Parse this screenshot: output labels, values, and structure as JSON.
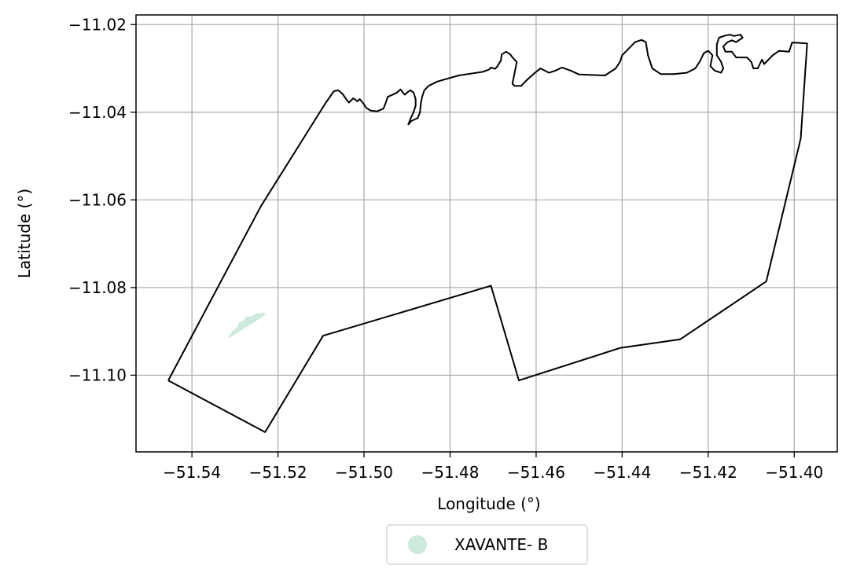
{
  "chart_data": {
    "type": "map",
    "xlabel": "Longitude (°)",
    "ylabel": "Latitude (°)",
    "xlim": [
      -51.553,
      -51.39
    ],
    "ylim": [
      -11.1175,
      -11.0178
    ],
    "xticks": [
      -51.54,
      -51.52,
      -51.5,
      -51.48,
      -51.46,
      -51.44,
      -51.42,
      -51.4
    ],
    "yticks": [
      -11.1,
      -11.08,
      -11.06,
      -11.04,
      -11.02
    ],
    "xtick_labels": [
      "−51.54",
      "−51.52",
      "−51.50",
      "−51.48",
      "−51.46",
      "−51.44",
      "−51.42",
      "−51.40"
    ],
    "ytick_labels": [
      "−11.10",
      "−11.08",
      "−11.06",
      "−11.04",
      "−11.02"
    ],
    "grid": true,
    "legend_position": "bottom-center",
    "boundary": {
      "color": "#000000",
      "coords": [
        [
          -51.5455,
          -11.1012
        ],
        [
          -51.523,
          -11.113
        ],
        [
          -51.5095,
          -11.091
        ],
        [
          -51.4705,
          -11.0796
        ],
        [
          -51.464,
          -11.1012
        ],
        [
          -51.4405,
          -11.0938
        ],
        [
          -51.4265,
          -11.0918
        ],
        [
          -51.4065,
          -11.0786
        ],
        [
          -51.3985,
          -11.046
        ],
        [
          -51.397,
          -11.0243
        ],
        [
          -51.4005,
          -11.0241
        ],
        [
          -51.4012,
          -11.0262
        ],
        [
          -51.4035,
          -11.026
        ],
        [
          -51.405,
          -11.027
        ],
        [
          -51.407,
          -11.029
        ],
        [
          -51.4075,
          -11.028
        ],
        [
          -51.4085,
          -11.03
        ],
        [
          -51.4095,
          -11.03
        ],
        [
          -51.41,
          -11.0285
        ],
        [
          -51.411,
          -11.0275
        ],
        [
          -51.4135,
          -11.0275
        ],
        [
          -51.4145,
          -11.0262
        ],
        [
          -51.416,
          -11.0262
        ],
        [
          -51.4165,
          -11.025
        ],
        [
          -51.4155,
          -11.024
        ],
        [
          -51.4145,
          -11.0236
        ],
        [
          -51.4135,
          -11.024
        ],
        [
          -51.412,
          -11.023
        ],
        [
          -51.4125,
          -11.0223
        ],
        [
          -51.414,
          -11.0226
        ],
        [
          -51.415,
          -11.0223
        ],
        [
          -51.416,
          -11.0225
        ],
        [
          -51.4175,
          -11.023
        ],
        [
          -51.418,
          -11.0245
        ],
        [
          -51.418,
          -11.027
        ],
        [
          -51.417,
          -11.0285
        ],
        [
          -51.4165,
          -11.03
        ],
        [
          -51.417,
          -11.031
        ],
        [
          -51.4185,
          -11.0305
        ],
        [
          -51.4195,
          -11.0295
        ],
        [
          -51.419,
          -11.027
        ],
        [
          -51.42,
          -11.026
        ],
        [
          -51.421,
          -11.0265
        ],
        [
          -51.422,
          -11.0285
        ],
        [
          -51.423,
          -11.03
        ],
        [
          -51.425,
          -11.031
        ],
        [
          -51.428,
          -11.0313
        ],
        [
          -51.431,
          -11.0313
        ],
        [
          -51.433,
          -11.03
        ],
        [
          -51.434,
          -11.027
        ],
        [
          -51.4345,
          -11.024
        ],
        [
          -51.4355,
          -11.0235
        ],
        [
          -51.437,
          -11.024
        ],
        [
          -51.4385,
          -11.0255
        ],
        [
          -51.44,
          -11.027
        ],
        [
          -51.4405,
          -11.0285
        ],
        [
          -51.4415,
          -11.03
        ],
        [
          -51.444,
          -11.0316
        ],
        [
          -51.447,
          -11.0315
        ],
        [
          -51.45,
          -11.0314
        ],
        [
          -51.452,
          -11.0305
        ],
        [
          -51.454,
          -11.0298
        ],
        [
          -51.4555,
          -11.0305
        ],
        [
          -51.457,
          -11.031
        ],
        [
          -51.459,
          -11.03
        ],
        [
          -51.4605,
          -11.0312
        ],
        [
          -51.462,
          -11.0325
        ],
        [
          -51.4635,
          -11.034
        ],
        [
          -51.465,
          -11.034
        ],
        [
          -51.4655,
          -11.0335
        ],
        [
          -51.465,
          -11.031
        ],
        [
          -51.4645,
          -11.0285
        ],
        [
          -51.4655,
          -11.0275
        ],
        [
          -51.466,
          -11.0268
        ],
        [
          -51.467,
          -11.0262
        ],
        [
          -51.468,
          -11.0268
        ],
        [
          -51.4682,
          -11.0282
        ],
        [
          -51.469,
          -11.0295
        ],
        [
          -51.4695,
          -11.0301
        ],
        [
          -51.4705,
          -11.0298
        ],
        [
          -51.471,
          -11.0303
        ],
        [
          -51.4725,
          -11.0308
        ],
        [
          -51.478,
          -11.0316
        ],
        [
          -51.483,
          -11.033
        ],
        [
          -51.485,
          -11.034
        ],
        [
          -51.486,
          -11.035
        ],
        [
          -51.4865,
          -11.0365
        ],
        [
          -51.4868,
          -11.038
        ],
        [
          -51.487,
          -11.04
        ],
        [
          -51.4875,
          -11.0413
        ],
        [
          -51.489,
          -11.042
        ],
        [
          -51.4897,
          -11.0428
        ],
        [
          -51.4892,
          -11.0415
        ],
        [
          -51.4885,
          -11.04
        ],
        [
          -51.488,
          -11.0385
        ],
        [
          -51.488,
          -11.037
        ],
        [
          -51.4885,
          -11.0355
        ],
        [
          -51.4892,
          -11.035
        ],
        [
          -51.49,
          -11.0355
        ],
        [
          -51.4905,
          -11.036
        ],
        [
          -51.491,
          -11.0355
        ],
        [
          -51.4915,
          -11.0348
        ],
        [
          -51.4925,
          -11.0356
        ],
        [
          -51.4945,
          -11.0365
        ],
        [
          -51.495,
          -11.038
        ],
        [
          -51.4955,
          -11.0392
        ],
        [
          -51.497,
          -11.0398
        ],
        [
          -51.4985,
          -11.0396
        ],
        [
          -51.4995,
          -11.039
        ],
        [
          -51.5,
          -11.0382
        ],
        [
          -51.501,
          -11.037
        ],
        [
          -51.5015,
          -11.0375
        ],
        [
          -51.5025,
          -11.0368
        ],
        [
          -51.5035,
          -11.0378
        ],
        [
          -51.504,
          -11.0372
        ],
        [
          -51.505,
          -11.0358
        ],
        [
          -51.506,
          -11.035
        ],
        [
          -51.507,
          -11.0352
        ],
        [
          -51.509,
          -11.038
        ],
        [
          -51.524,
          -11.0615
        ],
        [
          -51.5455,
          -11.1012
        ]
      ]
    },
    "series": [
      {
        "name": "XAVANTE- B",
        "color": "#cdeadc",
        "polygon": [
          [
            -51.5315,
            -11.0915
          ],
          [
            -51.5305,
            -11.09
          ],
          [
            -51.5295,
            -11.0892
          ],
          [
            -51.529,
            -11.088
          ],
          [
            -51.528,
            -11.0878
          ],
          [
            -51.5275,
            -11.0868
          ],
          [
            -51.526,
            -11.0866
          ],
          [
            -51.525,
            -11.086
          ],
          [
            -51.5235,
            -11.0858
          ],
          [
            -51.523,
            -11.0862
          ]
        ]
      }
    ]
  }
}
